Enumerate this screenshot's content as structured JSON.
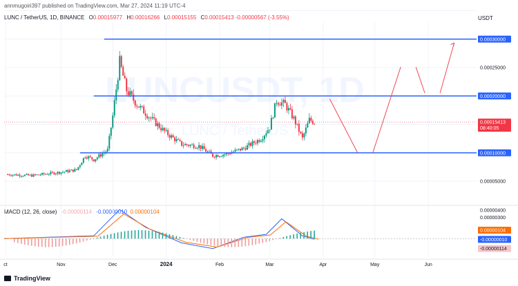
{
  "header": {
    "published": "annmugoiri397 published on TradingView.com, Mar 27, 2024 11:19 UTC-4",
    "symbol": "LUNC / TetherUS, 1D, BINANCE",
    "ohlc": [
      {
        "k": "O",
        "v": "0.00015977"
      },
      {
        "k": "H",
        "v": "0.00016266"
      },
      {
        "k": "L",
        "v": "0.00015155"
      },
      {
        "k": "C",
        "v": "0.00015413"
      }
    ],
    "change": "-0.00000567 (-3.55%)",
    "currency": "USDT"
  },
  "watermark": {
    "ticker": "LUNCUSDT, 1D",
    "name": "LUNC / TetherUS"
  },
  "macd": {
    "legend": "MACD (12, 26, close)",
    "values": [
      "-0.00000114",
      "-0.00000010",
      "0.00000104"
    ],
    "tags": [
      "0.00000104",
      "-0.00000010",
      "-0.00000114"
    ],
    "tag_colors": [
      "#ff6d00",
      "#2962ff",
      "#f5c6cb"
    ]
  },
  "footer": {
    "brand": "TradingView"
  },
  "chart_data": {
    "type": "candlestick",
    "title": "LUNC / TetherUS, 1D, BINANCE",
    "x_ticks": [
      "ct",
      "Nov",
      "Dec",
      "2024",
      "Feb",
      "Mar",
      "Apr",
      "May",
      "Jun"
    ],
    "y_ticks": [
      "0.00030000",
      "0.00025000",
      "0.00020000",
      "0.00015413",
      "0.00010000",
      "0.00005000"
    ],
    "ylim": [
      1e-05,
      0.00033
    ],
    "horizontal_lines": [
      {
        "label": "0.00030000",
        "value": 0.0003
      },
      {
        "label": "0.00020000",
        "value": 0.0002
      },
      {
        "label": "0.00010000",
        "value": 0.0001
      }
    ],
    "last_price": {
      "label": "0.00015413",
      "countdown": "08:40:05",
      "value": 0.00015413
    },
    "close_series": [
      [
        "2023-10-01",
        6.2e-05
      ],
      [
        "2023-10-15",
        6e-05
      ],
      [
        "2023-11-01",
        6.6e-05
      ],
      [
        "2023-11-10",
        7e-05
      ],
      [
        "2023-11-15",
        9.5e-05
      ],
      [
        "2023-11-20",
        8.8e-05
      ],
      [
        "2023-11-28",
        0.000105
      ],
      [
        "2023-12-01",
        0.000165
      ],
      [
        "2023-12-05",
        0.00026
      ],
      [
        "2023-12-09",
        0.00021
      ],
      [
        "2023-12-15",
        0.000185
      ],
      [
        "2023-12-25",
        0.000155
      ],
      [
        "2024-01-01",
        0.000135
      ],
      [
        "2024-01-10",
        0.000115
      ],
      [
        "2024-01-20",
        0.000112
      ],
      [
        "2024-01-28",
        9.5e-05
      ],
      [
        "2024-02-05",
        9.8e-05
      ],
      [
        "2024-02-15",
        0.000108
      ],
      [
        "2024-02-25",
        0.000125
      ],
      [
        "2024-03-01",
        0.000145
      ],
      [
        "2024-03-05",
        0.000192
      ],
      [
        "2024-03-10",
        0.000185
      ],
      [
        "2024-03-15",
        0.00016
      ],
      [
        "2024-03-20",
        0.000125
      ],
      [
        "2024-03-24",
        0.000158
      ],
      [
        "2024-03-27",
        0.000154
      ]
    ],
    "projection": [
      [
        "2024-03-27",
        0.000195
      ],
      [
        "2024-04-21",
        0.0001
      ],
      [
        "2024-05-16",
        0.000251
      ],
      [
        "2024-05-30",
        0.000205
      ],
      [
        "2024-06-16",
        0.000293
      ]
    ],
    "macd_ylim": [
      -2.5e-06,
      4.5e-06
    ],
    "macd_y_ticks": [
      "0.00000400",
      "0.00000300"
    ]
  }
}
